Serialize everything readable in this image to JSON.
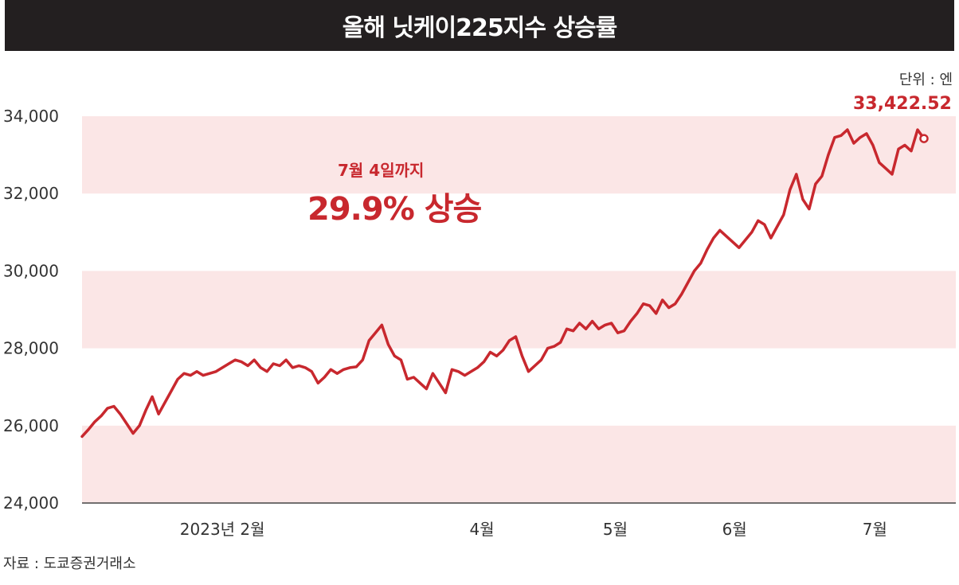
{
  "title": "올해 닛케이225지수 상승률",
  "unit": "단위 : 엔",
  "source": "자료 : 도쿄증권거래소",
  "annotation": {
    "sub": "7월 4일까지",
    "main": "29.9% 상승"
  },
  "last_value_label": "33,422.52",
  "colors": {
    "line": "#c8282e",
    "band": "#fbe6e6",
    "title_bg": "#231f20"
  },
  "chart_data": {
    "type": "line",
    "title": "올해 닛케이225지수 상승률",
    "ylabel": "엔",
    "ylim": [
      24000,
      34000
    ],
    "yticks": [
      24000,
      26000,
      28000,
      30000,
      32000,
      34000
    ],
    "ytick_labels": [
      "24,000",
      "26,000",
      "28,000",
      "30,000",
      "32,000",
      "34,000"
    ],
    "x_range": [
      0,
      108
    ],
    "xticks": [
      {
        "label": "2023년 2월",
        "x": 20
      },
      {
        "label": "4월",
        "x": 57
      },
      {
        "label": "5월",
        "x": 76
      },
      {
        "label": "6월",
        "x": 93
      },
      {
        "label": "7월",
        "x": 113
      }
    ],
    "series": [
      {
        "name": "닛케이225",
        "values": [
          25720,
          25900,
          26100,
          26250,
          26450,
          26500,
          26300,
          26050,
          25800,
          26000,
          26400,
          26750,
          26300,
          26600,
          26900,
          27200,
          27350,
          27300,
          27400,
          27300,
          27350,
          27400,
          27500,
          27600,
          27700,
          27650,
          27550,
          27700,
          27500,
          27400,
          27600,
          27550,
          27700,
          27500,
          27550,
          27500,
          27400,
          27100,
          27250,
          27450,
          27350,
          27450,
          27500,
          27520,
          27700,
          28200,
          28400,
          28600,
          28100,
          27800,
          27700,
          27200,
          27250,
          27100,
          26950,
          27350,
          27100,
          26850,
          27450,
          27400,
          27300,
          27400,
          27500,
          27650,
          27900,
          27800,
          27950,
          28200,
          28300,
          27800,
          27400,
          27550,
          27700,
          28000,
          28050,
          28150,
          28500,
          28450,
          28650,
          28500,
          28700,
          28500,
          28600,
          28650,
          28400,
          28450,
          28700,
          28900,
          29150,
          29100,
          28900,
          29250,
          29050,
          29150,
          29400,
          29700,
          30000,
          30200,
          30550,
          30850,
          31050,
          30900,
          30750,
          30600,
          30800,
          31000,
          31300,
          31200,
          30850,
          31150,
          31450,
          32100,
          32500,
          31850,
          31600,
          32250,
          32450,
          33000,
          33450,
          33500,
          33650,
          33300,
          33450,
          33550,
          33250,
          32800,
          32650,
          32500,
          33150,
          33250,
          33100,
          33650,
          33422.52
        ]
      }
    ],
    "last_value": 33422.52,
    "annotations": [
      "7월 4일까지",
      "29.9% 상승",
      "33,422.52"
    ]
  }
}
